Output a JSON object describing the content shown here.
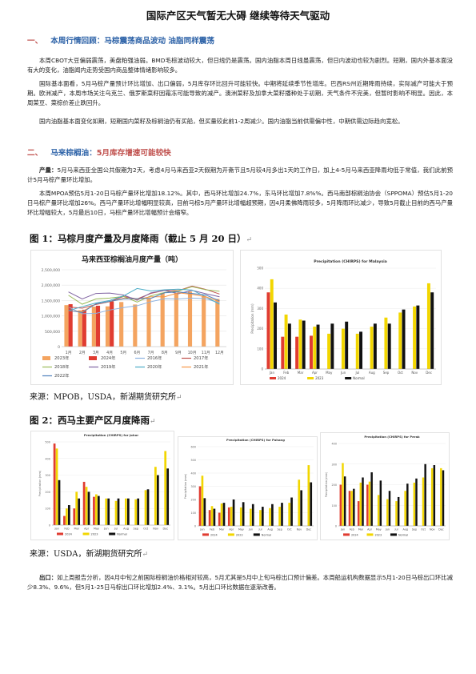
{
  "title": "国际产区天气暂无大碍 继续等待天气驱动",
  "section1": {
    "number": "一、",
    "heading": "本周行情回顾：马棕震荡商品波动 油脂同样震荡",
    "paragraphs": [
      "本周CBOT大豆偏弱震荡，美盘粕强油弱。BMD毛棕波动较大，但日线仍是震荡。国内油脂本周日线虽震荡，但日内波动也较为剧烈。短期，国内外基本面没有大的变化，油脂闻内走势受国内商品整体情绪影响较多。",
      "国际基本面看，5月马棕产量预计环比增加、出口偏弱，5月库存环比回升可能较快。中期将延续季节性增库。巴西RS州近期降雨持续，实际减产可能大于预期。欧洲减产，本周市场关注乌克兰、俄罗斯菜籽因霜冻可能导致的减产。澳洲菜籽及加拿大菜籽播种处于初期，天气条件不完美，但暂时影响不明显。因此，本周菜豆、菜棕价差止跌回升。",
      "国内油脂基本面变化如期，短期国内菜籽及棕榈油仍有买船，但买量较此前1-2周减少。国内油脂当前供需偏中性，中期供需边际趋向宽松。"
    ]
  },
  "section2": {
    "number": "二、",
    "heading_a": "马来棕榈油：",
    "heading_b": "5月库存增速可能较快",
    "p1_lead": "产量：",
    "p1": "5月马来西亚全国公共假期为2天，考虑4月马来西亚2天假期为开斋节且5月较4月多出1天的工作日，加上4-5月马来西亚降雨均低于常值，我们此前预计5月马棕产量环比增加。",
    "p2": "本周MPOA预估5月1-20日马棕产量环比增加18.12%。其中，西马环比增加24.7%，东马环比增加7.8%%。西马南部棕榈油协会（SPPOMA）预估5月1-20日马棕产量环比增加26%。西马产量环比增幅明显较高，目前马棕5月产量环比增幅超预期，因4月柔佛降雨较多，5月降雨环比减少，导致5月截止目前的西马产量环比增幅较大，5月最后10日，马棕产量环比增幅预计会缩窄。",
    "p3_lead": "出口：",
    "p3": "如上周报告分析，因4月中旬之前国际棕榈油价格相对较高，5月尤其是5月中上旬马棕出口预计偏差。本周船运机构数据显示5月1-20日马棕出口环比减少8.3%、9.6%，但5月1-25日马棕出口环比增加2.4%、3.1%。5月出口环比数据在逐渐改善。"
  },
  "fig1": {
    "caption": "图 1：马棕月度产量及月度降雨（截止 5 月 20 日）",
    "source": "来源：MPOB，USDA，新湖期货研究所"
  },
  "fig2": {
    "caption": "图 2：西马主要产区月度降雨",
    "source": "来源：USDA，新湖期货研究所"
  },
  "chart_data": [
    {
      "type": "bar",
      "title": "马来西亚棕榈油月度产量（吨）",
      "categories": [
        "1月",
        "2月",
        "3月",
        "4月",
        "5月",
        "6月",
        "7月",
        "8月",
        "9月",
        "10月",
        "11月",
        "12月"
      ],
      "ylim": [
        0,
        2500000
      ],
      "yticks": [
        "0",
        "500,000",
        "1,000,000",
        "1,500,000",
        "2,000,000",
        "2,500,000"
      ],
      "series": [
        {
          "name": "2023年",
          "kind": "bar",
          "color": "#f4a460",
          "values": [
            1350000,
            1180000,
            1300000,
            1310000,
            1450000,
            1370000,
            1580000,
            1750000,
            1740000,
            1790000,
            1650000,
            1550000
          ]
        },
        {
          "name": "2024年",
          "kind": "bar",
          "color": "#e03c31",
          "values": [
            1380000,
            1200000,
            1330000,
            1470000,
            null,
            null,
            null,
            null,
            null,
            null,
            null,
            null
          ]
        },
        {
          "name": "2016年",
          "kind": "line",
          "color": "#8db3e2",
          "values": [
            1290000,
            1070000,
            1080000,
            1190000,
            1270000,
            1330000,
            1460000,
            1560000,
            1550000,
            1580000,
            1560000,
            1420000
          ]
        },
        {
          "name": "2017年",
          "kind": "line",
          "color": "#c0504d",
          "values": [
            1290000,
            1250000,
            1370000,
            1460000,
            1630000,
            1550000,
            1730000,
            1830000,
            1820000,
            1970000,
            1860000,
            1710000
          ]
        },
        {
          "name": "2018年",
          "kind": "line",
          "color": "#9bbb59",
          "values": [
            1670000,
            1380000,
            1550000,
            1580000,
            1630000,
            1450000,
            1650000,
            1760000,
            1810000,
            1950000,
            1850000,
            1800000
          ]
        },
        {
          "name": "2019年",
          "kind": "line",
          "color": "#8064a2",
          "values": [
            1780000,
            1550000,
            1730000,
            1740000,
            1680000,
            1510000,
            1750000,
            1830000,
            1720000,
            1830000,
            1720000,
            1620000
          ]
        },
        {
          "name": "2020年",
          "kind": "line",
          "color": "#4bacc6",
          "values": [
            1170000,
            1300000,
            1420000,
            1500000,
            1650000,
            1890000,
            1810000,
            1850000,
            1870000,
            1840000,
            1620000,
            1380000
          ]
        },
        {
          "name": "2021年",
          "kind": "line",
          "color": "#f79646",
          "values": [
            1170000,
            1140000,
            1390000,
            1460000,
            1570000,
            1540000,
            1620000,
            1620000,
            1750000,
            1700000,
            1620000,
            1460000
          ]
        },
        {
          "name": "2022年",
          "kind": "line",
          "color": "#4f81bd",
          "values": [
            1180000,
            1110000,
            1390000,
            1470000,
            1550000,
            1560000,
            1570000,
            1750000,
            1780000,
            1730000,
            1680000,
            1490000
          ]
        }
      ]
    },
    {
      "type": "bar",
      "title": "Precipitation (CHIRPS) for Malaysia",
      "ylabel": "Precipitation (mm)",
      "categories": [
        "Jan",
        "Feb",
        "Mar",
        "Apr",
        "May",
        "Jun",
        "Jul",
        "Aug",
        "Sep",
        "Oct",
        "Nov",
        "Dec"
      ],
      "ylim": [
        0,
        500
      ],
      "yticks": [
        "0",
        "100",
        "200",
        "300",
        "400",
        "500"
      ],
      "series": [
        {
          "name": "2024",
          "color": "#e03c31",
          "values": [
            380,
            160,
            160,
            165,
            null,
            null,
            null,
            null,
            null,
            null,
            null,
            null
          ]
        },
        {
          "name": "2023",
          "color": "#f2d600",
          "values": [
            445,
            270,
            245,
            210,
            175,
            200,
            175,
            210,
            255,
            280,
            310,
            425
          ]
        },
        {
          "name": "Normal",
          "color": "#111111",
          "values": [
            330,
            225,
            240,
            220,
            225,
            235,
            185,
            225,
            225,
            295,
            315,
            380
          ]
        }
      ]
    },
    {
      "type": "bar",
      "title": "Precipitation (CHIRPS) for Johor",
      "ylabel": "Precipitation (mm)",
      "categories": [
        "Jan",
        "Feb",
        "Mar",
        "Apr",
        "May",
        "Jun",
        "Jul",
        "Aug",
        "Sep",
        "Oct",
        "Nov",
        "Dec"
      ],
      "ylim": [
        0,
        500
      ],
      "yticks": [
        "0",
        "100",
        "200",
        "300",
        "400",
        "500"
      ],
      "series": [
        {
          "name": "2024",
          "color": "#e03c31",
          "values": [
            490,
            55,
            100,
            260,
            170,
            null,
            null,
            null,
            null,
            null,
            null,
            null
          ]
        },
        {
          "name": "2023",
          "color": "#f2d600",
          "values": [
            460,
            100,
            200,
            230,
            185,
            160,
            145,
            160,
            155,
            210,
            350,
            445
          ]
        },
        {
          "name": "Normal",
          "color": "#111111",
          "values": [
            270,
            120,
            160,
            200,
            175,
            160,
            160,
            160,
            160,
            215,
            300,
            340
          ]
        }
      ]
    },
    {
      "type": "bar",
      "title": "Precipitation (CHIRPS) for Pahang",
      "ylabel": "Precipitation (mm)",
      "categories": [
        "Jan",
        "Feb",
        "Mar",
        "Apr",
        "May",
        "Jun",
        "Jul",
        "Aug",
        "Sep",
        "Oct",
        "Nov",
        "Dec"
      ],
      "ylim": [
        0,
        600
      ],
      "yticks": [
        "0",
        "100",
        "200",
        "300",
        "400",
        "500",
        "600"
      ],
      "series": [
        {
          "name": "2024",
          "color": "#e03c31",
          "values": [
            300,
            120,
            100,
            140,
            null,
            null,
            null,
            null,
            null,
            null,
            null,
            null
          ]
        },
        {
          "name": "2023",
          "color": "#f2d600",
          "values": [
            380,
            150,
            170,
            145,
            140,
            130,
            120,
            135,
            145,
            175,
            350,
            460
          ]
        },
        {
          "name": "Normal",
          "color": "#111111",
          "values": [
            210,
            130,
            175,
            200,
            180,
            165,
            145,
            165,
            175,
            215,
            270,
            330
          ]
        }
      ]
    },
    {
      "type": "bar",
      "title": "Precipitation (CHIRPS) for Perak",
      "ylabel": "Precipitation (mm)",
      "categories": [
        "Jan",
        "Feb",
        "Mar",
        "Apr",
        "May",
        "Jun",
        "Jul",
        "Aug",
        "Sep",
        "Oct",
        "Nov",
        "Dec"
      ],
      "ylim": [
        0,
        400
      ],
      "yticks": [
        "0",
        "100",
        "200",
        "300",
        "400"
      ],
      "series": [
        {
          "name": "2024",
          "color": "#e03c31",
          "values": [
            200,
            170,
            120,
            200,
            null,
            null,
            null,
            null,
            null,
            null,
            null,
            null
          ]
        },
        {
          "name": "2023",
          "color": "#f2d600",
          "values": [
            305,
            170,
            210,
            215,
            150,
            130,
            120,
            170,
            210,
            235,
            280,
            280
          ]
        },
        {
          "name": "Normal",
          "color": "#111111",
          "values": [
            240,
            180,
            235,
            260,
            220,
            170,
            140,
            205,
            230,
            300,
            295,
            270
          ]
        }
      ]
    }
  ]
}
